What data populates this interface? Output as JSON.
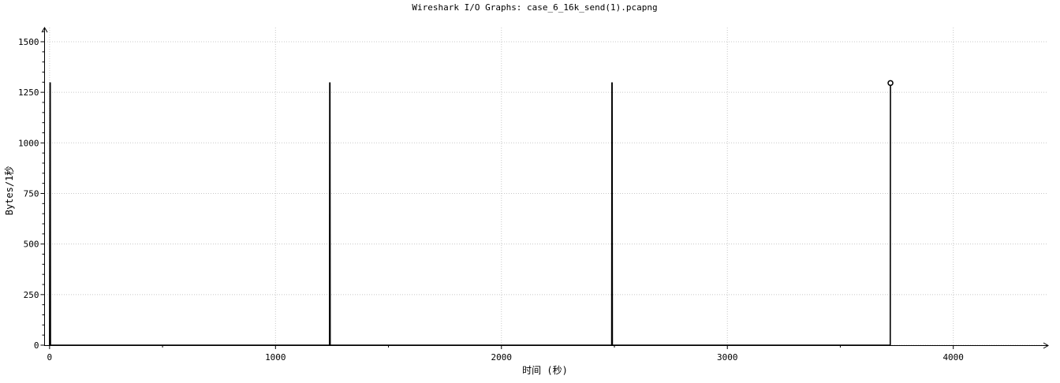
{
  "chart_data": {
    "type": "line",
    "title": "Wireshark I/O Graphs: case_6_16k_send(1).pcapng",
    "xlabel": "时间 (秒)",
    "ylabel": "Bytes/1秒",
    "xlim": [
      -10,
      4420
    ],
    "ylim": [
      0,
      1570
    ],
    "xticks": [
      0,
      1000,
      2000,
      3000,
      4000
    ],
    "yticks": [
      0,
      250,
      500,
      750,
      1000,
      1250,
      1500
    ],
    "grid": true,
    "series": [
      {
        "color": "#000000",
        "x": [
          0,
          2,
          3,
          4,
          5,
          1239,
          1240,
          1241,
          1242,
          2488,
          2489,
          2490,
          2491,
          3721,
          3722
        ],
        "y": [
          0,
          1296,
          1296,
          0,
          0,
          0,
          1296,
          1296,
          0,
          0,
          1296,
          1296,
          0,
          0,
          1296
        ]
      }
    ],
    "last_point_marker": {
      "x": 3722,
      "y": 1296
    }
  }
}
